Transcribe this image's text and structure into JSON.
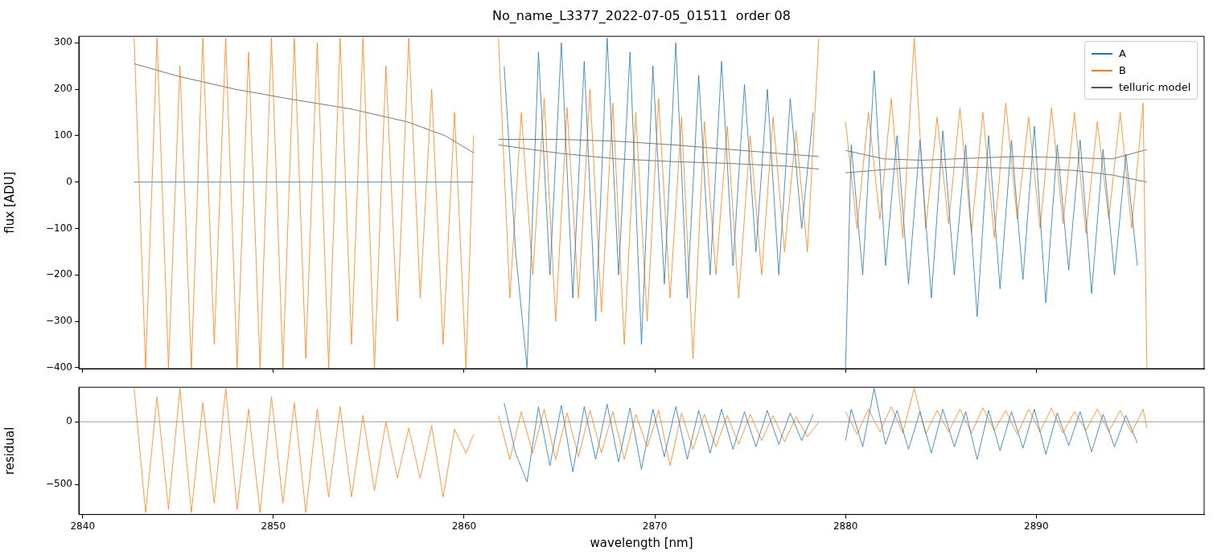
{
  "chart_data": [
    {
      "type": "line",
      "title": "No_name_L3377_2022-07-05_01511  order 08",
      "ylabel": "flux [ADU]",
      "xlim": [
        2839.8,
        2898.8
      ],
      "ylim": [
        -402,
        314
      ],
      "xticks": [
        2840,
        2850,
        2860,
        2870,
        2880,
        2890
      ],
      "yticks": [
        {
          "value": -400,
          "label": "−400"
        },
        {
          "value": -300,
          "label": "−300"
        },
        {
          "value": -200,
          "label": "−200"
        },
        {
          "value": -100,
          "label": "−100"
        },
        0,
        100,
        200,
        300
      ],
      "tick_labels": "y",
      "legend": "top right",
      "marker": "none",
      "line_style": "solid",
      "series": [
        {
          "name": "A",
          "color": "#1f77b4",
          "x": [
            2842.7,
            2860.5,
            2861.2,
            2862.1,
            2862.7,
            2863.3,
            2863.9,
            2864.5,
            2865.1,
            2865.7,
            2866.3,
            2866.9,
            2867.5,
            2868.1,
            2868.7,
            2869.3,
            2869.9,
            2870.5,
            2871.1,
            2871.7,
            2872.3,
            2872.9,
            2873.5,
            2874.1,
            2874.7,
            2875.3,
            2875.9,
            2876.5,
            2877.1,
            2877.7,
            2878.3,
            2879.3,
            2880.0,
            2880.3,
            2880.9,
            2881.5,
            2882.1,
            2882.7,
            2883.3,
            2883.9,
            2884.5,
            2885.1,
            2885.7,
            2886.3,
            2886.9,
            2887.5,
            2888.1,
            2888.7,
            2889.3,
            2889.9,
            2890.5,
            2891.1,
            2891.7,
            2892.3,
            2892.9,
            2893.5,
            2894.1,
            2894.7,
            2895.3
          ],
          "values": [
            0,
            0,
            null,
            250,
            -150,
            -400,
            280,
            -200,
            300,
            -250,
            260,
            -300,
            310,
            -200,
            280,
            -350,
            250,
            -220,
            300,
            -250,
            230,
            -200,
            260,
            -180,
            210,
            -150,
            200,
            -200,
            180,
            -100,
            150,
            null,
            -400,
            80,
            -200,
            240,
            -180,
            100,
            -220,
            90,
            -250,
            110,
            -200,
            80,
            -290,
            100,
            -230,
            90,
            -210,
            120,
            -260,
            80,
            -190,
            90,
            -240,
            70,
            -200,
            60,
            -180
          ]
        },
        {
          "name": "B",
          "color": "#ff7f0e",
          "x": [
            2842.7,
            2843.3,
            2843.9,
            2844.5,
            2845.1,
            2845.7,
            2846.3,
            2846.9,
            2847.5,
            2848.1,
            2848.7,
            2849.3,
            2849.9,
            2850.5,
            2851.1,
            2851.7,
            2852.3,
            2852.9,
            2853.5,
            2854.1,
            2854.7,
            2855.3,
            2855.9,
            2856.5,
            2857.1,
            2857.7,
            2858.3,
            2858.9,
            2859.5,
            2860.1,
            2860.5,
            2861.2,
            2861.8,
            2862.4,
            2863.0,
            2863.6,
            2864.2,
            2864.8,
            2865.4,
            2866.0,
            2866.6,
            2867.2,
            2867.8,
            2868.4,
            2869.0,
            2869.6,
            2870.2,
            2870.8,
            2871.4,
            2872.0,
            2872.6,
            2873.2,
            2873.8,
            2874.4,
            2875.0,
            2875.6,
            2876.2,
            2876.8,
            2877.4,
            2878.0,
            2878.6,
            2879.3,
            2880.0,
            2880.6,
            2881.2,
            2881.8,
            2882.4,
            2883.0,
            2883.6,
            2884.2,
            2884.8,
            2885.4,
            2886.0,
            2886.6,
            2887.2,
            2887.8,
            2888.4,
            2889.0,
            2889.6,
            2890.2,
            2890.8,
            2891.4,
            2892.0,
            2892.6,
            2893.2,
            2893.8,
            2894.4,
            2895.0,
            2895.6,
            2895.8
          ],
          "values": [
            310,
            -400,
            310,
            -400,
            250,
            -400,
            310,
            -350,
            310,
            -400,
            280,
            -400,
            310,
            -400,
            310,
            -380,
            300,
            -400,
            310,
            -350,
            310,
            -400,
            250,
            -300,
            310,
            -250,
            200,
            -350,
            150,
            -400,
            100,
            null,
            310,
            -250,
            150,
            -200,
            180,
            -300,
            160,
            -250,
            200,
            -280,
            170,
            -350,
            150,
            -300,
            180,
            -250,
            140,
            -380,
            130,
            -200,
            120,
            -250,
            100,
            -200,
            140,
            -150,
            110,
            -150,
            310,
            null,
            130,
            -100,
            150,
            -80,
            180,
            -120,
            310,
            -100,
            140,
            -90,
            160,
            -110,
            150,
            -120,
            170,
            -80,
            140,
            -100,
            160,
            -90,
            150,
            -110,
            130,
            -80,
            150,
            -100,
            170,
            -400
          ]
        },
        {
          "name": "telluric model",
          "color": "#555555",
          "x": [
            2842.7,
            2845,
            2848,
            2851,
            2854,
            2857,
            2859,
            2860.5
          ],
          "values": [
            255,
            228,
            200,
            178,
            158,
            130,
            100,
            63
          ]
        },
        {
          "color": "#555555",
          "x": [
            2861.8,
            2865,
            2868,
            2871,
            2874,
            2877,
            2878.6
          ],
          "values": [
            92,
            92,
            88,
            80,
            70,
            60,
            55
          ]
        },
        {
          "color": "#555555",
          "x": [
            2861.8,
            2865,
            2868,
            2871,
            2874,
            2877,
            2878.6
          ],
          "values": [
            80,
            62,
            50,
            44,
            40,
            34,
            28
          ]
        },
        {
          "color": "#555555",
          "x": [
            2880,
            2882,
            2884,
            2887,
            2889,
            2892,
            2894,
            2895.8
          ],
          "values": [
            68,
            50,
            47,
            52,
            55,
            52,
            50,
            70
          ]
        },
        {
          "color": "#555555",
          "x": [
            2880,
            2883,
            2886,
            2889,
            2892,
            2894,
            2895.8
          ],
          "values": [
            20,
            30,
            32,
            30,
            25,
            15,
            0
          ]
        }
      ]
    },
    {
      "type": "line",
      "ylabel": "residual",
      "xlabel": "wavelength [nm]",
      "xlim": [
        2839.8,
        2898.8
      ],
      "ylim": [
        -740,
        275
      ],
      "xticks": [
        2840,
        2850,
        2860,
        2870,
        2880,
        2890
      ],
      "yticks": [
        {
          "value": -500,
          "label": "−500"
        },
        0
      ],
      "marker": "none",
      "line_style": "solid",
      "ref_lines": [
        {
          "axis": "y",
          "value": 0,
          "color": "#808080"
        }
      ],
      "series": [
        {
          "color": "#1f77b4",
          "x": [
            2862.1,
            2862.7,
            2863.3,
            2863.9,
            2864.5,
            2865.1,
            2865.7,
            2866.3,
            2866.9,
            2867.5,
            2868.1,
            2868.7,
            2869.3,
            2869.9,
            2870.5,
            2871.1,
            2871.7,
            2872.3,
            2872.9,
            2873.5,
            2874.1,
            2874.7,
            2875.3,
            2875.9,
            2876.5,
            2877.1,
            2877.7,
            2878.3,
            2879.3,
            2880.0,
            2880.3,
            2880.9,
            2881.5,
            2882.1,
            2882.7,
            2883.3,
            2883.9,
            2884.5,
            2885.1,
            2885.7,
            2886.3,
            2886.9,
            2887.5,
            2888.1,
            2888.7,
            2889.3,
            2889.9,
            2890.5,
            2891.1,
            2891.7,
            2892.3,
            2892.9,
            2893.5,
            2894.1,
            2894.7,
            2895.3
          ],
          "values": [
            150,
            -250,
            -480,
            120,
            -350,
            130,
            -400,
            120,
            -300,
            140,
            -320,
            110,
            -380,
            100,
            -280,
            120,
            -300,
            90,
            -250,
            100,
            -220,
            80,
            -200,
            90,
            -180,
            70,
            -150,
            60,
            null,
            -150,
            100,
            -200,
            265,
            -180,
            90,
            -220,
            80,
            -250,
            100,
            -200,
            80,
            -300,
            90,
            -230,
            80,
            -210,
            100,
            -260,
            70,
            -190,
            80,
            -240,
            60,
            -200,
            50,
            -170
          ]
        },
        {
          "color": "#ff7f0e",
          "x": [
            2842.7,
            2843.3,
            2843.9,
            2844.5,
            2845.1,
            2845.7,
            2846.3,
            2846.9,
            2847.5,
            2848.1,
            2848.7,
            2849.3,
            2849.9,
            2850.5,
            2851.1,
            2851.7,
            2852.3,
            2852.9,
            2853.5,
            2854.1,
            2854.7,
            2855.3,
            2855.9,
            2856.5,
            2857.1,
            2857.7,
            2858.3,
            2858.9,
            2859.5,
            2860.1,
            2860.5,
            2861.2,
            2861.8,
            2862.4,
            2863.0,
            2863.6,
            2864.2,
            2864.8,
            2865.4,
            2866.0,
            2866.6,
            2867.2,
            2867.8,
            2868.4,
            2869.0,
            2869.6,
            2870.2,
            2870.8,
            2871.4,
            2872.0,
            2872.6,
            2873.2,
            2873.8,
            2874.4,
            2875.0,
            2875.6,
            2876.2,
            2876.8,
            2877.4,
            2878.0,
            2878.6,
            2879.3,
            2880.0,
            2880.6,
            2881.2,
            2881.8,
            2882.4,
            2883.0,
            2883.6,
            2884.2,
            2884.8,
            2885.4,
            2886.0,
            2886.6,
            2887.2,
            2887.8,
            2888.4,
            2889.0,
            2889.6,
            2890.2,
            2890.8,
            2891.4,
            2892.0,
            2892.6,
            2893.2,
            2893.8,
            2894.4,
            2895.0,
            2895.6,
            2895.8
          ],
          "values": [
            265,
            -725,
            200,
            -700,
            265,
            -725,
            150,
            -650,
            265,
            -700,
            100,
            -725,
            200,
            -650,
            150,
            -725,
            100,
            -600,
            120,
            -600,
            50,
            -550,
            0,
            -450,
            -50,
            -450,
            -30,
            -600,
            -60,
            -250,
            -100,
            null,
            50,
            -300,
            80,
            -250,
            100,
            -300,
            70,
            -280,
            90,
            -250,
            80,
            -300,
            60,
            -200,
            90,
            -350,
            70,
            -220,
            60,
            -200,
            50,
            -180,
            60,
            -150,
            50,
            -160,
            40,
            -120,
            0,
            null,
            80,
            -100,
            100,
            -80,
            120,
            -90,
            265,
            -100,
            90,
            -80,
            100,
            -90,
            110,
            -70,
            90,
            -100,
            100,
            -80,
            110,
            -90,
            80,
            -70,
            100,
            -80,
            90,
            -90,
            100,
            -50
          ]
        }
      ]
    }
  ]
}
